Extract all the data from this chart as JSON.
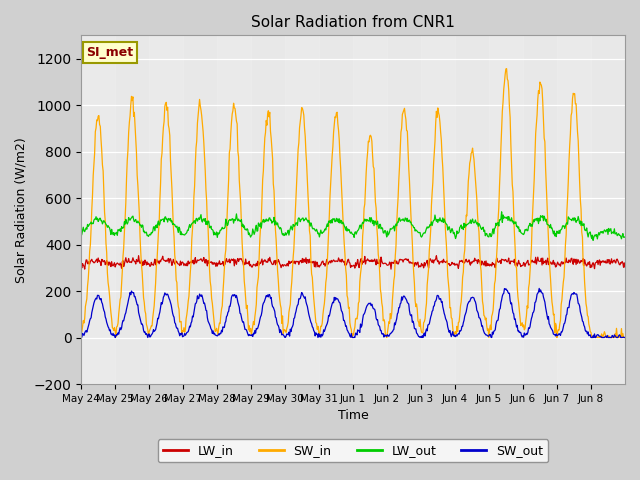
{
  "title": "Solar Radiation from CNR1",
  "xlabel": "Time",
  "ylabel": "Solar Radiation (W/m2)",
  "ylim": [
    -200,
    1300
  ],
  "yticks": [
    -200,
    0,
    200,
    400,
    600,
    800,
    1000,
    1200
  ],
  "legend_label": "SI_met",
  "legend_entries": [
    "LW_in",
    "SW_in",
    "LW_out",
    "SW_out"
  ],
  "line_colors": [
    "#cc0000",
    "#ffaa00",
    "#00cc00",
    "#0000cc"
  ],
  "n_days": 16,
  "x_tick_labels": [
    "May 24",
    "May 25",
    "May 26",
    "May 27",
    "May 28",
    "May 29",
    "May 30",
    "May 31",
    "Jun 1",
    "Jun 2",
    "Jun 3",
    "Jun 4",
    "Jun 5",
    "Jun 6",
    "Jun 7",
    "Jun 8"
  ],
  "lw_in_base": 290,
  "lw_in_amp": 40,
  "sw_in_peaks": [
    960,
    1020,
    1000,
    1000,
    1000,
    980,
    975,
    960,
    870,
    990,
    980,
    800,
    1150,
    1100,
    1050,
    0
  ],
  "lw_out_base": 400,
  "lw_out_amp": 60,
  "sw_out_peaks": [
    180,
    195,
    185,
    185,
    185,
    185,
    185,
    170,
    150,
    175,
    175,
    175,
    210,
    200,
    195,
    0
  ]
}
